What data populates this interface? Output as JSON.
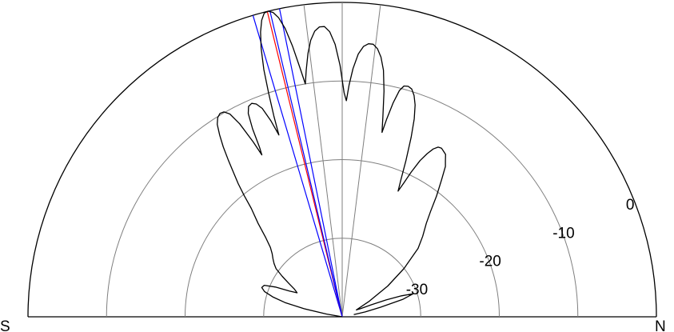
{
  "chart_data": {
    "type": "polar",
    "coordinate_system": "half-polar (0° = N on the right, 180° = S on the left)",
    "radial_axis": {
      "unit": "dB",
      "range": [
        -40,
        0
      ],
      "rings": [
        -30,
        -20,
        -10,
        0
      ],
      "tick_labels": [
        "-30",
        "-20",
        "-10",
        "0"
      ]
    },
    "angle_labels": {
      "left": "S",
      "right": "N"
    },
    "radial_spokes_deg": [
      83,
      90,
      97
    ],
    "pattern": {
      "units": "angle in degrees from N, level in dB",
      "points": [
        [
          11,
          -38.5
        ],
        [
          12,
          -37
        ],
        [
          14,
          -35
        ],
        [
          16,
          -32
        ],
        [
          18,
          -30.5
        ],
        [
          19.5,
          -32
        ],
        [
          21,
          -34
        ],
        [
          22.5,
          -36
        ],
        [
          24,
          -37.5
        ],
        [
          26,
          -38
        ],
        [
          30,
          -36
        ],
        [
          34,
          -33
        ],
        [
          38,
          -30
        ],
        [
          42,
          -27
        ],
        [
          45,
          -25.5
        ],
        [
          48,
          -24
        ],
        [
          50,
          -22.5
        ],
        [
          52,
          -20.5
        ],
        [
          54,
          -18.5
        ],
        [
          55.5,
          -16.8
        ],
        [
          56.5,
          -16.2
        ],
        [
          57.5,
          -15.5
        ],
        [
          58.5,
          -15.3
        ],
        [
          59.5,
          -15.1
        ],
        [
          60.5,
          -15.2
        ],
        [
          61.5,
          -15.7
        ],
        [
          62.5,
          -16.6
        ],
        [
          63.5,
          -17.8
        ],
        [
          64.5,
          -19.6
        ],
        [
          65.3,
          -21.3
        ],
        [
          66,
          -22.5
        ],
        [
          66.8,
          -21
        ],
        [
          67.8,
          -18.5
        ],
        [
          69,
          -15.5
        ],
        [
          70,
          -13.2
        ],
        [
          71,
          -11.5
        ],
        [
          72,
          -10.4
        ],
        [
          73,
          -9.7
        ],
        [
          74,
          -9.5
        ],
        [
          75,
          -9.6
        ],
        [
          75.8,
          -10.3
        ],
        [
          76.6,
          -12
        ],
        [
          77.3,
          -14.2
        ],
        [
          77.8,
          -16
        ],
        [
          78.5,
          -14
        ],
        [
          79.5,
          -10.8
        ],
        [
          80.5,
          -8.2
        ],
        [
          81.5,
          -6.6
        ],
        [
          82.5,
          -5.6
        ],
        [
          83.5,
          -5.1
        ],
        [
          84.5,
          -5.1
        ],
        [
          85.5,
          -5.5
        ],
        [
          86.5,
          -6.5
        ],
        [
          87.5,
          -8.4
        ],
        [
          88.3,
          -10.5
        ],
        [
          88.9,
          -12.5
        ],
        [
          89.5,
          -11.5
        ],
        [
          90.5,
          -8
        ],
        [
          91.5,
          -5.3
        ],
        [
          92.5,
          -3.7
        ],
        [
          93.5,
          -3
        ],
        [
          94.5,
          -3
        ],
        [
          95.5,
          -3.5
        ],
        [
          96.5,
          -4.6
        ],
        [
          97.4,
          -6.2
        ],
        [
          98.3,
          -8.3
        ],
        [
          99,
          -10
        ],
        [
          99.6,
          -8
        ],
        [
          100.4,
          -5
        ],
        [
          101.2,
          -2.6
        ],
        [
          102,
          -1.1
        ],
        [
          102.8,
          -0.3
        ],
        [
          103.6,
          0
        ],
        [
          104.4,
          -0.1
        ],
        [
          105.2,
          -0.9
        ],
        [
          106,
          -2.3
        ],
        [
          106.8,
          -4.3
        ],
        [
          107.6,
          -7
        ],
        [
          108.2,
          -10
        ],
        [
          108.8,
          -13
        ],
        [
          109.2,
          -15.5
        ],
        [
          110,
          -13.5
        ],
        [
          111,
          -11.6
        ],
        [
          112,
          -10.8
        ],
        [
          113,
          -10.5
        ],
        [
          114,
          -10.7
        ],
        [
          114.8,
          -11.5
        ],
        [
          115.5,
          -13.5
        ],
        [
          116,
          -16
        ],
        [
          116.4,
          -17
        ],
        [
          117,
          -15
        ],
        [
          118,
          -12.2
        ],
        [
          119,
          -10.5
        ],
        [
          120,
          -9.9
        ],
        [
          121,
          -9.8
        ],
        [
          122,
          -10.1
        ],
        [
          123,
          -10.8
        ],
        [
          124,
          -12.1
        ],
        [
          125,
          -13.6
        ],
        [
          126,
          -15.3
        ],
        [
          127,
          -17
        ],
        [
          128,
          -18.5
        ],
        [
          129,
          -20.2
        ],
        [
          130,
          -22
        ],
        [
          132,
          -24
        ],
        [
          134,
          -26
        ],
        [
          136,
          -27.3
        ],
        [
          138,
          -28
        ],
        [
          140,
          -28.5
        ],
        [
          142,
          -29
        ],
        [
          144,
          -29.6
        ],
        [
          146,
          -30.8
        ],
        [
          148,
          -32
        ],
        [
          150,
          -33
        ],
        [
          152,
          -33.5
        ],
        [
          154,
          -32.5
        ],
        [
          156,
          -30.7
        ],
        [
          158,
          -29.3
        ],
        [
          160,
          -29.1
        ],
        [
          162,
          -29.6
        ],
        [
          164,
          -30.8
        ],
        [
          166,
          -32.5
        ],
        [
          168,
          -35
        ],
        [
          170,
          -38
        ],
        [
          171,
          -40
        ]
      ]
    },
    "beam_lines_deg": [
      {
        "color": "#0000ff",
        "angles": [
          106.5,
          101.5
        ]
      },
      {
        "color": "#ff0000",
        "angles": [
          103.8
        ]
      },
      {
        "color": "#0000ff",
        "angles": [
          103.3
        ]
      }
    ]
  },
  "colors": {
    "pattern": "#000000",
    "outer_arc": "#000000",
    "grid": "#7f7f7f",
    "blue_line": "#0000ff",
    "red_line": "#ff0000"
  }
}
